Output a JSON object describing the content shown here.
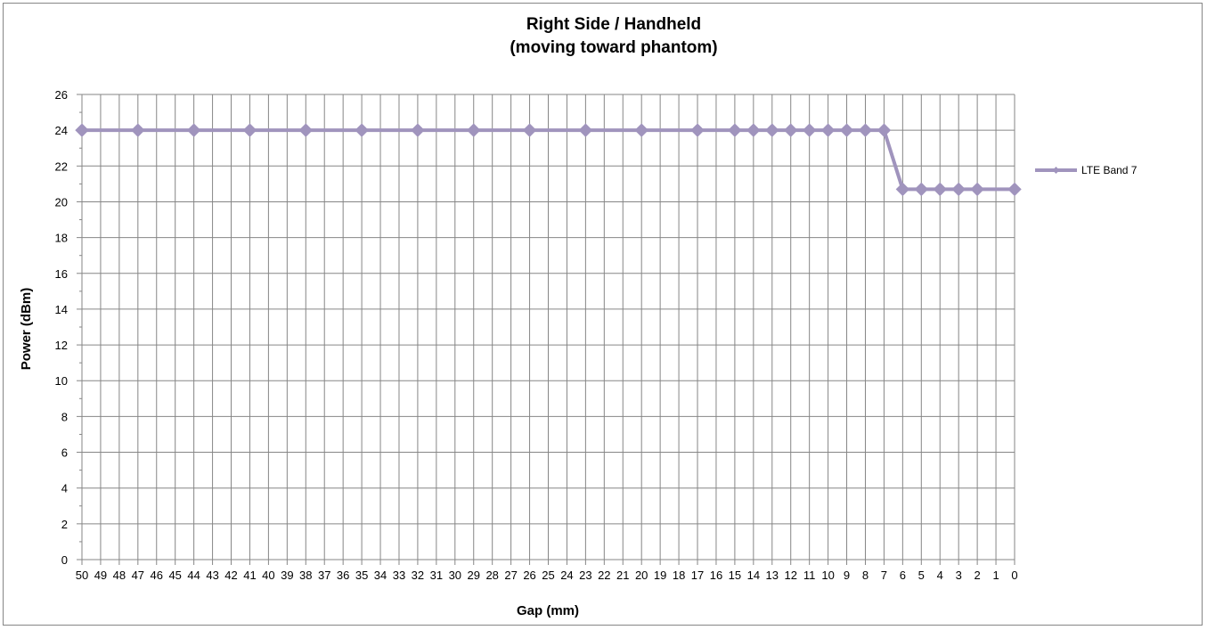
{
  "chart_data": {
    "type": "line",
    "title": [
      "Right Side / Handheld",
      "(moving toward phantom)"
    ],
    "xlabel": "Gap (mm)",
    "ylabel": "Power (dBm)",
    "ylim": [
      0,
      26
    ],
    "y_major_step": 2,
    "x": [
      50,
      49,
      48,
      47,
      46,
      45,
      44,
      43,
      42,
      41,
      40,
      39,
      38,
      37,
      36,
      35,
      34,
      33,
      32,
      31,
      30,
      29,
      28,
      27,
      26,
      25,
      24,
      23,
      22,
      21,
      20,
      19,
      18,
      17,
      16,
      15,
      14,
      13,
      12,
      11,
      10,
      9,
      8,
      7,
      6,
      5,
      4,
      3,
      2,
      1,
      0
    ],
    "grid": true,
    "legend_position": "right",
    "series": [
      {
        "name": "LTE Band 7",
        "color": "#a094bd",
        "marker": "diamond",
        "points": [
          {
            "x": 50,
            "y": 24
          },
          {
            "x": 47,
            "y": 24
          },
          {
            "x": 44,
            "y": 24
          },
          {
            "x": 41,
            "y": 24
          },
          {
            "x": 38,
            "y": 24
          },
          {
            "x": 35,
            "y": 24
          },
          {
            "x": 32,
            "y": 24
          },
          {
            "x": 29,
            "y": 24
          },
          {
            "x": 26,
            "y": 24
          },
          {
            "x": 23,
            "y": 24
          },
          {
            "x": 20,
            "y": 24
          },
          {
            "x": 17,
            "y": 24
          },
          {
            "x": 15,
            "y": 24
          },
          {
            "x": 14,
            "y": 24
          },
          {
            "x": 13,
            "y": 24
          },
          {
            "x": 12,
            "y": 24
          },
          {
            "x": 11,
            "y": 24
          },
          {
            "x": 10,
            "y": 24
          },
          {
            "x": 9,
            "y": 24
          },
          {
            "x": 8,
            "y": 24
          },
          {
            "x": 7,
            "y": 24
          },
          {
            "x": 6,
            "y": 20.7
          },
          {
            "x": 5,
            "y": 20.7
          },
          {
            "x": 4,
            "y": 20.7
          },
          {
            "x": 3,
            "y": 20.7
          },
          {
            "x": 2,
            "y": 20.7
          },
          {
            "x": 0,
            "y": 20.7
          }
        ]
      }
    ]
  }
}
